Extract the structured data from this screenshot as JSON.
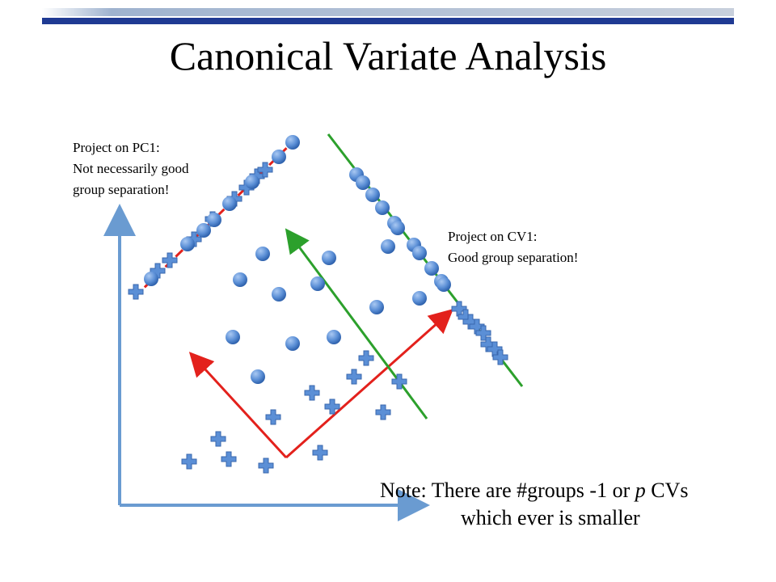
{
  "title": "Canonical Variate Analysis",
  "pc1_note": {
    "line1": "Project on PC1:",
    "line2": "Not necessarily good",
    "line3": "group separation!"
  },
  "cv1_note": {
    "line1": "Project on CV1:",
    "line2": "Good group separation!"
  },
  "bottom_note": {
    "line1_prefix": "Note: There are #groups -1 or ",
    "line1_italic": "p",
    "line1_suffix": " CVs",
    "line2": "which ever is smaller"
  },
  "colors": {
    "circle_group": "#5b8fd6",
    "cross_group": "#5b8fd6",
    "pc_axis": "#e3211c",
    "cv_axis": "#2ca02c",
    "plot_axes": "#6a9bd1"
  },
  "icons": {
    "circle_marker": "circle-marker-icon",
    "cross_marker": "plus-marker-icon"
  }
}
